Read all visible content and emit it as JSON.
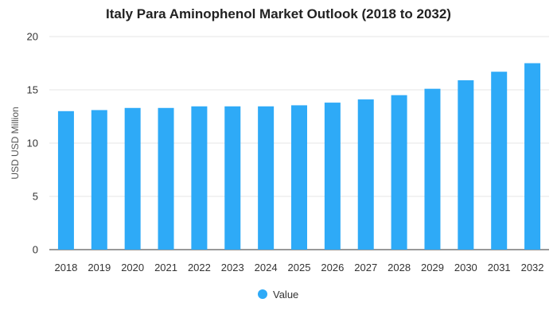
{
  "chart_data": {
    "type": "bar",
    "title": "Italy Para Aminophenol Market Outlook (2018 to 2032)",
    "xlabel": "",
    "ylabel": "USD USD Million",
    "categories": [
      "2018",
      "2019",
      "2020",
      "2021",
      "2022",
      "2023",
      "2024",
      "2025",
      "2026",
      "2027",
      "2028",
      "2029",
      "2030",
      "2031",
      "2032"
    ],
    "series": [
      {
        "name": "Value",
        "values": [
          13.0,
          13.1,
          13.3,
          13.3,
          13.45,
          13.45,
          13.45,
          13.55,
          13.8,
          14.1,
          14.5,
          15.1,
          15.9,
          16.7,
          17.5
        ]
      }
    ],
    "ylim": [
      0,
      20
    ],
    "yticks": [
      0,
      5,
      10,
      15,
      20
    ],
    "grid": true,
    "legend_position": "bottom-center",
    "colors": {
      "bar": "#2eaaf7",
      "grid": "#e6e6e6",
      "axis": "#333333"
    }
  }
}
